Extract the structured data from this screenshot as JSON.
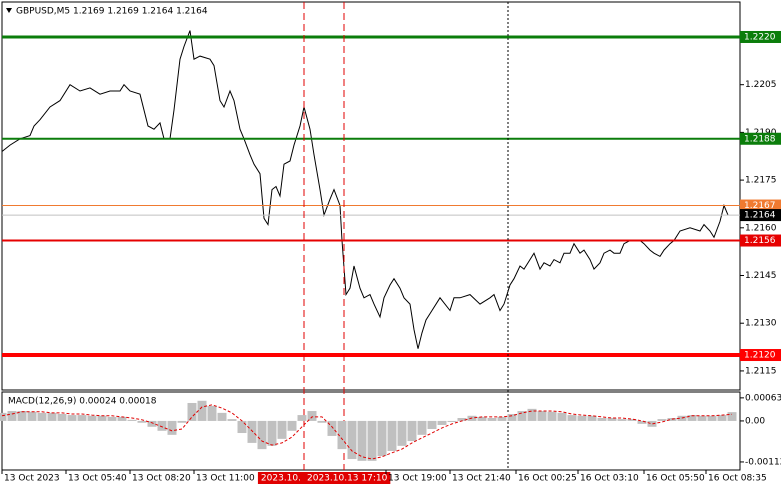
{
  "chart_data": [
    {
      "type": "line",
      "title": "GBPUSD,M5  1.2169 1.2169 1.2164 1.2164",
      "color": "#000000",
      "xlim": [
        0,
        369
      ],
      "ylim": [
        1.2109,
        1.2231
      ],
      "yticks": [
        1.2205,
        {
          "value": 1.219,
          "label": "1.2190"
        },
        1.2175,
        {
          "value": 1.216,
          "label": "1.2160"
        },
        1.2145,
        {
          "value": 1.213,
          "label": "1.2130"
        },
        1.2115
      ],
      "x": [
        0,
        4,
        9,
        14,
        16,
        19,
        24,
        29,
        34,
        39,
        44,
        49,
        54,
        59,
        61,
        64,
        69,
        73,
        76,
        79,
        81,
        84,
        86,
        89,
        91,
        94,
        96,
        99,
        104,
        106,
        109,
        111,
        114,
        116,
        119,
        121,
        124,
        126,
        129,
        131,
        133,
        135,
        137,
        139,
        141,
        144,
        146,
        149,
        151,
        154,
        156,
        159,
        161,
        164,
        166,
        169,
        170,
        172,
        174,
        176,
        179,
        181,
        184,
        186,
        189,
        191,
        194,
        196,
        199,
        201,
        204,
        206,
        208,
        210,
        212,
        215,
        219,
        224,
        226,
        229,
        234,
        239,
        244,
        246,
        249,
        251,
        254,
        256,
        259,
        261,
        264,
        266,
        269,
        271,
        274,
        276,
        279,
        281,
        284,
        286,
        289,
        291,
        294,
        296,
        299,
        301,
        304,
        306,
        309,
        311,
        314,
        319,
        321,
        324,
        326,
        329,
        331,
        334,
        336,
        339,
        344,
        349,
        351,
        354,
        356,
        359,
        361,
        363
      ],
      "values": [
        1.2184,
        1.2186,
        1.2188,
        1.2189,
        1.2192,
        1.2194,
        1.2198,
        1.22,
        1.2205,
        1.2203,
        1.2204,
        1.2202,
        1.2203,
        1.2203,
        1.2205,
        1.2203,
        1.2202,
        1.2192,
        1.2191,
        1.2193,
        1.2188,
        1.2188,
        1.2197,
        1.2213,
        1.2217,
        1.2222,
        1.2213,
        1.2214,
        1.2213,
        1.2211,
        1.22,
        1.2198,
        1.2203,
        1.22,
        1.2191,
        1.2188,
        1.2183,
        1.218,
        1.2177,
        1.2163,
        1.2161,
        1.2172,
        1.2173,
        1.217,
        1.218,
        1.2181,
        1.2186,
        1.2192,
        1.2198,
        1.2191,
        1.2183,
        1.2172,
        1.2164,
        1.2169,
        1.2172,
        1.2167,
        1.2156,
        1.2139,
        1.2141,
        1.2148,
        1.2141,
        1.2138,
        1.2139,
        1.2136,
        1.2132,
        1.2138,
        1.2142,
        1.2144,
        1.2141,
        1.2138,
        1.2136,
        1.2128,
        1.2122,
        1.2127,
        1.2131,
        1.2134,
        1.2138,
        1.2134,
        1.2138,
        1.2138,
        1.2139,
        1.2136,
        1.2138,
        1.2139,
        1.2134,
        1.2136,
        1.2142,
        1.2144,
        1.2148,
        1.2147,
        1.215,
        1.2152,
        1.2147,
        1.2149,
        1.2148,
        1.215,
        1.2149,
        1.2152,
        1.2152,
        1.2155,
        1.2152,
        1.2153,
        1.215,
        1.2147,
        1.2149,
        1.2152,
        1.2153,
        1.2152,
        1.2152,
        1.2155,
        1.2156,
        1.2156,
        1.2155,
        1.2153,
        1.2152,
        1.2151,
        1.2153,
        1.2155,
        1.2156,
        1.2159,
        1.216,
        1.2159,
        1.2161,
        1.2159,
        1.2157,
        1.2162,
        1.2167,
        1.2164
      ],
      "levels": [
        {
          "value": 1.222,
          "label": "1.2220",
          "color": "#0b7d0b",
          "width": 3
        },
        {
          "value": 1.2188,
          "label": "1.2188",
          "color": "#0b7d0b",
          "width": 2
        },
        {
          "value": 1.2167,
          "label": "1.2167",
          "color": "#f07a30",
          "width": 1
        },
        {
          "value": 1.2164,
          "label": "1.2164",
          "color": "#c0c0c0",
          "box_color": "#000000",
          "width": 1
        },
        {
          "value": 1.2156,
          "label": "1.2156",
          "color": "#e60000",
          "width": 2
        },
        {
          "value": 1.212,
          "label": "1.2120",
          "color": "#ff0000",
          "width": 4
        }
      ],
      "vlines": [
        {
          "x": 151,
          "label": "2023.10.",
          "color": "#e00000",
          "style": "dashed"
        },
        {
          "x": 171,
          "label": "2023.10.13 17:10",
          "color": "#e00000",
          "style": "dashed"
        },
        {
          "x": 253,
          "color": "#000000",
          "style": "dotted"
        }
      ]
    },
    {
      "type": "bar",
      "title": "MACD(12,26,9) 0.00024 0.00018",
      "color": "#c0c0c0",
      "signal_color": "#e00000",
      "xlim": [
        0,
        369
      ],
      "ylim": [
        -0.00134,
        0.00079
      ],
      "yticks": [
        0.00063,
        {
          "value": 0,
          "label": "0.00"
        },
        -0.00112
      ],
      "xticks": [
        {
          "value": 0,
          "label": "13 Oct 2023"
        },
        {
          "value": 32,
          "label": "13 Oct 05:40"
        },
        {
          "value": 64,
          "label": "13 Oct 08:20"
        },
        {
          "value": 96,
          "label": "13 Oct 11:00"
        },
        {
          "value": 192,
          "label": "13 Oct 19:00"
        },
        {
          "value": 224,
          "label": "13 Oct 21:40"
        },
        {
          "value": 257,
          "label": "16 Oct 00:25"
        },
        {
          "value": 288,
          "label": "16 Oct 03:10"
        },
        {
          "value": 321,
          "label": "16 Oct 05:50"
        },
        {
          "value": 352,
          "label": "16 Oct 08:35"
        }
      ],
      "x": [
        0,
        5,
        10,
        15,
        20,
        25,
        30,
        35,
        40,
        45,
        50,
        55,
        60,
        65,
        70,
        75,
        80,
        85,
        90,
        95,
        100,
        105,
        110,
        115,
        120,
        125,
        130,
        135,
        140,
        145,
        150,
        155,
        160,
        165,
        170,
        175,
        180,
        185,
        190,
        195,
        200,
        205,
        210,
        215,
        220,
        225,
        230,
        235,
        240,
        245,
        250,
        255,
        260,
        265,
        270,
        275,
        280,
        285,
        290,
        295,
        300,
        305,
        310,
        315,
        320,
        325,
        330,
        335,
        340,
        345,
        350,
        355,
        360,
        365
      ],
      "values": [
        0.00022,
        0.00027,
        0.00027,
        0.00025,
        0.00022,
        0.00022,
        0.00019,
        0.00016,
        0.00016,
        0.00014,
        0.00014,
        0.00011,
        0.00011,
        3e-05,
        -5e-05,
        -0.00016,
        -0.00027,
        -0.00038,
        -5e-05,
        0.00049,
        0.00055,
        0.00041,
        0.00022,
        5e-05,
        -0.00033,
        -0.0006,
        -0.00077,
        -0.00068,
        -0.00049,
        -0.00027,
        0.00016,
        0.00027,
        -5e-05,
        -0.00041,
        -0.00077,
        -0.00104,
        -0.00109,
        -0.00109,
        -0.00096,
        -0.00082,
        -0.00068,
        -0.00055,
        -0.00038,
        -0.00022,
        -0.00011,
        -3e-05,
        8e-05,
        0.00014,
        0.00011,
        8e-05,
        0.00011,
        0.00019,
        0.00027,
        0.00033,
        0.00027,
        0.00025,
        0.00022,
        0.00016,
        0.00014,
        0.00014,
        8e-05,
        8e-05,
        5e-05,
        5e-05,
        -8e-05,
        -0.00016,
        5e-05,
        8e-05,
        0.00014,
        0.00016,
        0.00014,
        0.00014,
        0.00016,
        0.00024
      ],
      "signal": [
        0.00014,
        0.00019,
        0.00025,
        0.00025,
        0.00025,
        0.00022,
        0.00022,
        0.00019,
        0.00019,
        0.00016,
        0.00014,
        0.00014,
        0.00011,
        8e-05,
        3e-05,
        -5e-05,
        -0.00016,
        -0.00027,
        -0.00022,
        0.00011,
        0.00038,
        0.00044,
        0.00035,
        0.00022,
        0,
        -0.00027,
        -0.00055,
        -0.00066,
        -0.0006,
        -0.00044,
        -0.00016,
        0.00011,
        0.00011,
        -0.00016,
        -0.00049,
        -0.00082,
        -0.00098,
        -0.00104,
        -0.00098,
        -0.00087,
        -0.00077,
        -0.0006,
        -0.00046,
        -0.00033,
        -0.00019,
        -8e-05,
        0,
        8e-05,
        0.00011,
        0.00011,
        0.00011,
        0.00014,
        0.00022,
        0.00027,
        0.00027,
        0.00027,
        0.00025,
        0.00019,
        0.00016,
        0.00014,
        0.00011,
        8e-05,
        8e-05,
        5e-05,
        0,
        -8e-05,
        -3e-05,
        5e-05,
        8e-05,
        0.00014,
        0.00014,
        0.00014,
        0.00016,
        0.00018
      ]
    }
  ]
}
